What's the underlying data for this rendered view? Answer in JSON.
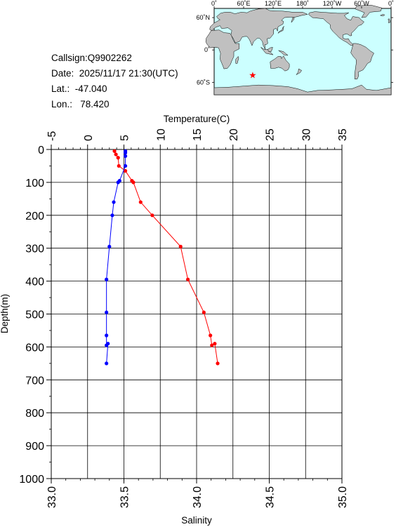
{
  "station": {
    "callsign": "Callsign:Q9902262",
    "date": "Date:  2025/11/17 21:30(UTC)",
    "lat": "Lat.:  -47.040",
    "lon": "Lon.:   78.420"
  },
  "map": {
    "top_labels": [
      "0˚",
      "60˚E",
      "120˚E",
      "180˚",
      "120˚W",
      "60˚W",
      "0˚"
    ],
    "side_labels": [
      "60˚N",
      "0˚",
      "60˚S"
    ],
    "ocean_color": "#ccffff",
    "land_color": "#c0c0c0",
    "marker_color": "#ff0000",
    "marker": {
      "lat": -47.04,
      "lon": 78.42
    }
  },
  "chart_data": {
    "type": "line",
    "title": "",
    "xlabel_top": "Temperature(C)",
    "xlabel_bottom": "Salinity",
    "ylabel": "Depth(m)",
    "temperature_ticks": [
      "-5",
      "0",
      "5",
      "10",
      "15",
      "20",
      "25",
      "30",
      "35"
    ],
    "salinity_ticks": [
      "33.0",
      "33.5",
      "34.0",
      "34.5",
      "35.0"
    ],
    "depth_ticks": [
      "0",
      "100",
      "200",
      "300",
      "400",
      "500",
      "600",
      "700",
      "800",
      "900",
      "1000"
    ],
    "temperature_range": [
      -5,
      35
    ],
    "salinity_range": [
      33.0,
      35.0
    ],
    "depth_range": [
      0,
      1000
    ],
    "grid": true,
    "series": [
      {
        "color": "#ff0000",
        "axis": "temperature",
        "points": [
          [
            3.7,
            5
          ],
          [
            3.9,
            15
          ],
          [
            4.2,
            25
          ],
          [
            4.3,
            50
          ],
          [
            5.2,
            65
          ],
          [
            6.1,
            95
          ],
          [
            6.3,
            100
          ],
          [
            7.3,
            160
          ],
          [
            8.9,
            200
          ],
          [
            12.8,
            295
          ],
          [
            13.8,
            395
          ],
          [
            16.0,
            495
          ],
          [
            16.9,
            565
          ],
          [
            17.1,
            595
          ],
          [
            17.5,
            590
          ],
          [
            17.9,
            650
          ]
        ]
      },
      {
        "color": "#0000ff",
        "axis": "salinity",
        "points": [
          [
            33.51,
            5
          ],
          [
            33.51,
            10
          ],
          [
            33.51,
            20
          ],
          [
            33.51,
            50
          ],
          [
            33.47,
            95
          ],
          [
            33.46,
            100
          ],
          [
            33.43,
            160
          ],
          [
            33.42,
            200
          ],
          [
            33.4,
            295
          ],
          [
            33.38,
            395
          ],
          [
            33.38,
            495
          ],
          [
            33.38,
            565
          ],
          [
            33.38,
            595
          ],
          [
            33.39,
            590
          ],
          [
            33.38,
            650
          ]
        ]
      }
    ]
  }
}
